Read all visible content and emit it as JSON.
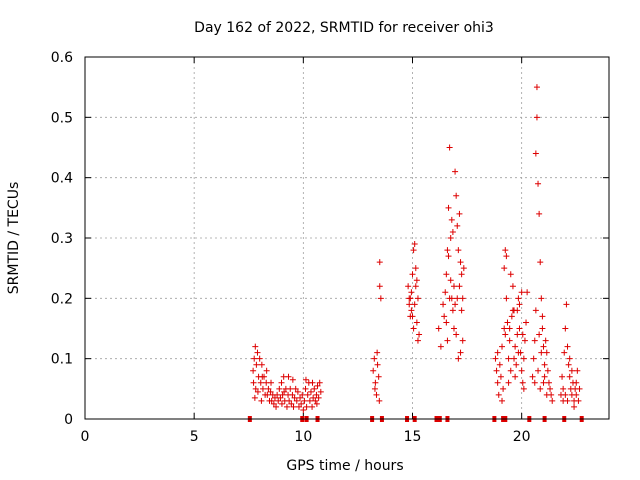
{
  "chart_data": {
    "type": "scatter",
    "title": "Day 162 of 2022, SRMTID for receiver ohi3",
    "xlabel": "GPS time / hours",
    "ylabel": "SRMTID / TECUs",
    "xlim": [
      0,
      24
    ],
    "ylim": [
      0,
      0.6
    ],
    "xticks": [
      0,
      5,
      10,
      15,
      20
    ],
    "yticks": [
      0,
      0.1,
      0.2,
      0.3,
      0.4,
      0.5,
      0.6
    ],
    "xtick_labels": [
      "0",
      "5",
      "10",
      "15",
      "20"
    ],
    "ytick_labels": [
      "0",
      "0.1",
      "0.2",
      "0.3",
      "0.4",
      "0.5",
      "0.6"
    ],
    "grid": true,
    "legend": "none",
    "marker_color": "#dd0000",
    "series": [
      {
        "name": "SRMTID",
        "marker": "plus",
        "points": [
          [
            7.7,
            0.08
          ],
          [
            7.75,
            0.1
          ],
          [
            7.8,
            0.12
          ],
          [
            7.85,
            0.09
          ],
          [
            7.9,
            0.11
          ],
          [
            7.95,
            0.07
          ],
          [
            8.0,
            0.1
          ],
          [
            8.05,
            0.06
          ],
          [
            8.1,
            0.09
          ],
          [
            8.15,
            0.05
          ],
          [
            8.2,
            0.07
          ],
          [
            8.25,
            0.04
          ],
          [
            8.3,
            0.06
          ],
          [
            8.35,
            0.04
          ],
          [
            8.4,
            0.05
          ],
          [
            8.45,
            0.03
          ],
          [
            8.5,
            0.045
          ],
          [
            8.55,
            0.03
          ],
          [
            8.6,
            0.04
          ],
          [
            8.65,
            0.025
          ],
          [
            8.7,
            0.035
          ],
          [
            8.75,
            0.02
          ],
          [
            8.8,
            0.04
          ],
          [
            8.85,
            0.03
          ],
          [
            8.9,
            0.05
          ],
          [
            8.95,
            0.035
          ],
          [
            9.0,
            0.06
          ],
          [
            9.05,
            0.04
          ],
          [
            9.1,
            0.07
          ],
          [
            9.15,
            0.03
          ],
          [
            9.2,
            0.05
          ],
          [
            9.25,
            0.02
          ],
          [
            9.3,
            0.04
          ],
          [
            9.35,
            0.03
          ],
          [
            9.4,
            0.05
          ],
          [
            9.45,
            0.025
          ],
          [
            9.5,
            0.04
          ],
          [
            9.55,
            0.02
          ],
          [
            9.6,
            0.035
          ],
          [
            9.65,
            0.05
          ],
          [
            9.7,
            0.03
          ],
          [
            9.75,
            0.045
          ],
          [
            9.8,
            0.02
          ],
          [
            9.85,
            0.035
          ],
          [
            9.9,
            0.025
          ],
          [
            9.95,
            0.04
          ],
          [
            10.0,
            0.015
          ],
          [
            10.05,
            0.03
          ],
          [
            10.1,
            0.05
          ],
          [
            10.15,
            0.02
          ],
          [
            10.2,
            0.04
          ],
          [
            10.25,
            0.06
          ],
          [
            10.3,
            0.03
          ],
          [
            10.35,
            0.045
          ],
          [
            10.4,
            0.02
          ],
          [
            10.45,
            0.035
          ],
          [
            10.5,
            0.05
          ],
          [
            10.55,
            0.03
          ],
          [
            10.6,
            0.04
          ],
          [
            10.65,
            0.055
          ],
          [
            10.7,
            0.035
          ],
          [
            10.75,
            0.06
          ],
          [
            10.8,
            0.045
          ],
          [
            7.72,
            0.06
          ],
          [
            7.82,
            0.05
          ],
          [
            7.92,
            0.045
          ],
          [
            8.12,
            0.07
          ],
          [
            8.32,
            0.08
          ],
          [
            8.52,
            0.06
          ],
          [
            9.02,
            0.025
          ],
          [
            9.12,
            0.045
          ],
          [
            9.52,
            0.065
          ],
          [
            10.12,
            0.065
          ],
          [
            10.42,
            0.06
          ],
          [
            10.62,
            0.025
          ],
          [
            7.78,
            0.035
          ],
          [
            8.08,
            0.03
          ],
          [
            9.32,
            0.07
          ],
          [
            13.2,
            0.08
          ],
          [
            13.25,
            0.1
          ],
          [
            13.3,
            0.06
          ],
          [
            13.35,
            0.04
          ],
          [
            13.4,
            0.09
          ],
          [
            13.45,
            0.07
          ],
          [
            13.5,
            0.26
          ],
          [
            13.5,
            0.22
          ],
          [
            13.55,
            0.2
          ],
          [
            13.28,
            0.05
          ],
          [
            13.38,
            0.11
          ],
          [
            13.48,
            0.03
          ],
          [
            14.8,
            0.22
          ],
          [
            14.85,
            0.19
          ],
          [
            14.9,
            0.17
          ],
          [
            14.95,
            0.21
          ],
          [
            15.0,
            0.24
          ],
          [
            15.05,
            0.28
          ],
          [
            15.1,
            0.29
          ],
          [
            15.15,
            0.25
          ],
          [
            15.2,
            0.23
          ],
          [
            15.25,
            0.2
          ],
          [
            15.3,
            0.14
          ],
          [
            15.1,
            0.19
          ],
          [
            15.0,
            0.17
          ],
          [
            14.9,
            0.2
          ],
          [
            15.15,
            0.22
          ],
          [
            15.2,
            0.16
          ],
          [
            15.05,
            0.15
          ],
          [
            14.95,
            0.18
          ],
          [
            15.25,
            0.13
          ],
          [
            14.85,
            0.2
          ],
          [
            16.2,
            0.15
          ],
          [
            16.3,
            0.12
          ],
          [
            16.4,
            0.19
          ],
          [
            16.45,
            0.17
          ],
          [
            16.5,
            0.21
          ],
          [
            16.55,
            0.24
          ],
          [
            16.6,
            0.28
          ],
          [
            16.65,
            0.35
          ],
          [
            16.7,
            0.45
          ],
          [
            16.75,
            0.3
          ],
          [
            16.8,
            0.2
          ],
          [
            16.85,
            0.18
          ],
          [
            16.9,
            0.15
          ],
          [
            16.95,
            0.41
          ],
          [
            17.0,
            0.37
          ],
          [
            17.05,
            0.32
          ],
          [
            17.1,
            0.28
          ],
          [
            17.15,
            0.22
          ],
          [
            17.2,
            0.26
          ],
          [
            17.25,
            0.18
          ],
          [
            17.3,
            0.13
          ],
          [
            17.35,
            0.25
          ],
          [
            16.6,
            0.13
          ],
          [
            16.7,
            0.2
          ],
          [
            16.8,
            0.33
          ],
          [
            16.9,
            0.22
          ],
          [
            17.0,
            0.14
          ],
          [
            17.1,
            0.1
          ],
          [
            17.2,
            0.11
          ],
          [
            16.65,
            0.27
          ],
          [
            16.75,
            0.23
          ],
          [
            16.85,
            0.31
          ],
          [
            16.95,
            0.19
          ],
          [
            17.05,
            0.2
          ],
          [
            17.15,
            0.34
          ],
          [
            17.25,
            0.24
          ],
          [
            16.55,
            0.16
          ],
          [
            17.3,
            0.2
          ],
          [
            18.8,
            0.1
          ],
          [
            18.85,
            0.08
          ],
          [
            18.9,
            0.06
          ],
          [
            18.95,
            0.04
          ],
          [
            19.0,
            0.09
          ],
          [
            19.05,
            0.07
          ],
          [
            19.1,
            0.12
          ],
          [
            19.15,
            0.05
          ],
          [
            19.2,
            0.15
          ],
          [
            19.25,
            0.28
          ],
          [
            19.3,
            0.2
          ],
          [
            19.35,
            0.16
          ],
          [
            19.4,
            0.1
          ],
          [
            19.45,
            0.13
          ],
          [
            19.5,
            0.08
          ],
          [
            19.55,
            0.17
          ],
          [
            19.6,
            0.22
          ],
          [
            19.65,
            0.18
          ],
          [
            19.7,
            0.12
          ],
          [
            19.75,
            0.09
          ],
          [
            19.8,
            0.14
          ],
          [
            19.85,
            0.2
          ],
          [
            19.9,
            0.15
          ],
          [
            19.95,
            0.11
          ],
          [
            20.0,
            0.08
          ],
          [
            20.05,
            0.06
          ],
          [
            20.1,
            0.1
          ],
          [
            20.15,
            0.13
          ],
          [
            20.2,
            0.16
          ],
          [
            20.25,
            0.21
          ],
          [
            19.2,
            0.25
          ],
          [
            19.3,
            0.27
          ],
          [
            19.4,
            0.06
          ],
          [
            19.5,
            0.24
          ],
          [
            19.6,
            0.18
          ],
          [
            19.7,
            0.07
          ],
          [
            19.8,
            0.18
          ],
          [
            19.9,
            0.19
          ],
          [
            20.0,
            0.21
          ],
          [
            20.1,
            0.05
          ],
          [
            19.25,
            0.14
          ],
          [
            19.45,
            0.15
          ],
          [
            19.65,
            0.1
          ],
          [
            19.85,
            0.11
          ],
          [
            20.05,
            0.14
          ],
          [
            18.9,
            0.11
          ],
          [
            19.1,
            0.03
          ],
          [
            20.5,
            0.07
          ],
          [
            20.55,
            0.1
          ],
          [
            20.6,
            0.13
          ],
          [
            20.65,
            0.44
          ],
          [
            20.7,
            0.55
          ],
          [
            20.7,
            0.5
          ],
          [
            20.75,
            0.39
          ],
          [
            20.8,
            0.34
          ],
          [
            20.85,
            0.26
          ],
          [
            20.9,
            0.2
          ],
          [
            20.95,
            0.17
          ],
          [
            21.0,
            0.12
          ],
          [
            21.05,
            0.09
          ],
          [
            21.1,
            0.13
          ],
          [
            21.15,
            0.11
          ],
          [
            21.2,
            0.08
          ],
          [
            21.25,
            0.06
          ],
          [
            21.3,
            0.05
          ],
          [
            21.35,
            0.04
          ],
          [
            21.4,
            0.03
          ],
          [
            20.6,
            0.06
          ],
          [
            20.75,
            0.08
          ],
          [
            20.85,
            0.05
          ],
          [
            20.95,
            0.15
          ],
          [
            21.05,
            0.07
          ],
          [
            20.8,
            0.14
          ],
          [
            21.0,
            0.06
          ],
          [
            20.65,
            0.18
          ],
          [
            20.9,
            0.11
          ],
          [
            21.15,
            0.04
          ],
          [
            21.8,
            0.04
          ],
          [
            21.85,
            0.07
          ],
          [
            21.9,
            0.05
          ],
          [
            21.95,
            0.11
          ],
          [
            22.0,
            0.15
          ],
          [
            22.05,
            0.19
          ],
          [
            22.1,
            0.12
          ],
          [
            22.15,
            0.09
          ],
          [
            22.2,
            0.07
          ],
          [
            22.25,
            0.05
          ],
          [
            22.3,
            0.04
          ],
          [
            22.35,
            0.06
          ],
          [
            22.4,
            0.03
          ],
          [
            22.45,
            0.05
          ],
          [
            22.5,
            0.04
          ],
          [
            22.55,
            0.08
          ],
          [
            22.6,
            0.03
          ],
          [
            22.65,
            0.05
          ],
          [
            22.0,
            0.04
          ],
          [
            22.1,
            0.03
          ],
          [
            22.3,
            0.08
          ],
          [
            22.5,
            0.06
          ],
          [
            22.2,
            0.1
          ],
          [
            21.9,
            0.03
          ],
          [
            22.4,
            0.02
          ]
        ]
      },
      {
        "name": "zero-level",
        "marker": "square",
        "points": [
          [
            7.55,
            0
          ],
          [
            9.95,
            0
          ],
          [
            10.15,
            0
          ],
          [
            10.65,
            0
          ],
          [
            13.15,
            0
          ],
          [
            13.6,
            0
          ],
          [
            14.75,
            0
          ],
          [
            15.1,
            0
          ],
          [
            16.1,
            0
          ],
          [
            16.25,
            0
          ],
          [
            16.6,
            0
          ],
          [
            18.75,
            0
          ],
          [
            19.15,
            0
          ],
          [
            19.25,
            0
          ],
          [
            20.35,
            0
          ],
          [
            21.05,
            0
          ],
          [
            21.95,
            0
          ],
          [
            22.75,
            0
          ]
        ]
      }
    ]
  }
}
